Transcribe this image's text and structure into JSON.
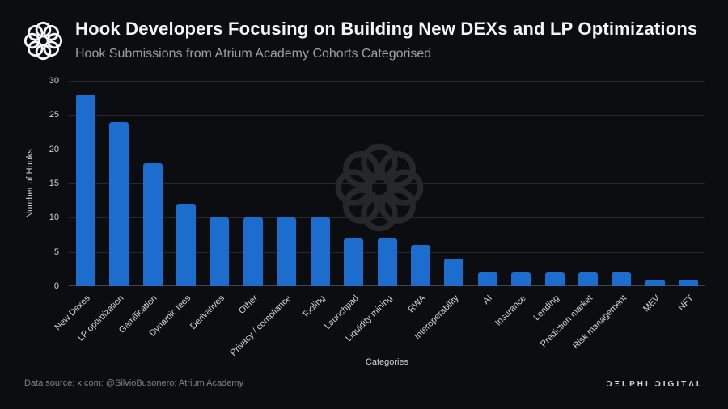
{
  "page": {
    "background_color": "#0c0d10"
  },
  "header": {
    "logo_icon": "delphi-knot-icon",
    "title": "Hook Developers Focusing on Building New DEXs and LP Optimizations",
    "subtitle": "Hook Submissions from Atrium Academy Cohorts Categorised"
  },
  "chart_data": {
    "type": "bar",
    "title": "Hook Developers Focusing on Building New DEXs and LP Optimizations",
    "subtitle": "Hook Submissions from Atrium Academy Cohorts Categorised",
    "categories": [
      "New Dexes",
      "LP optimization",
      "Gamification",
      "Dynamic fees",
      "Derivatives",
      "Other",
      "Privacy / compliance",
      "Tooling",
      "Launchpad",
      "Liquidity mining",
      "RWA",
      "Interoperability",
      "AI",
      "Insurance",
      "Lending",
      "Prediction market",
      "Risk management",
      "MEV",
      "NFT"
    ],
    "values": [
      28,
      24,
      18,
      12,
      10,
      10,
      10,
      10,
      7,
      7,
      6,
      4,
      2,
      2,
      2,
      2,
      2,
      1,
      1
    ],
    "xlabel": "Categories",
    "ylabel": "Number of Hooks",
    "ylim": [
      0,
      30
    ],
    "yticks": [
      0,
      5,
      10,
      15,
      20,
      25,
      30
    ],
    "grid": true,
    "legend": false,
    "bar_color": "#1c6dce",
    "grid_color": "#26282c",
    "axis_color": "#43464b",
    "watermark_icon": "delphi-knot-icon"
  },
  "footer": {
    "source": "Data source: x.com: @SilvioBusonero; Atrium Academy",
    "brand_wordmark": "ƆΞLPHI ƆIGITΛL"
  }
}
